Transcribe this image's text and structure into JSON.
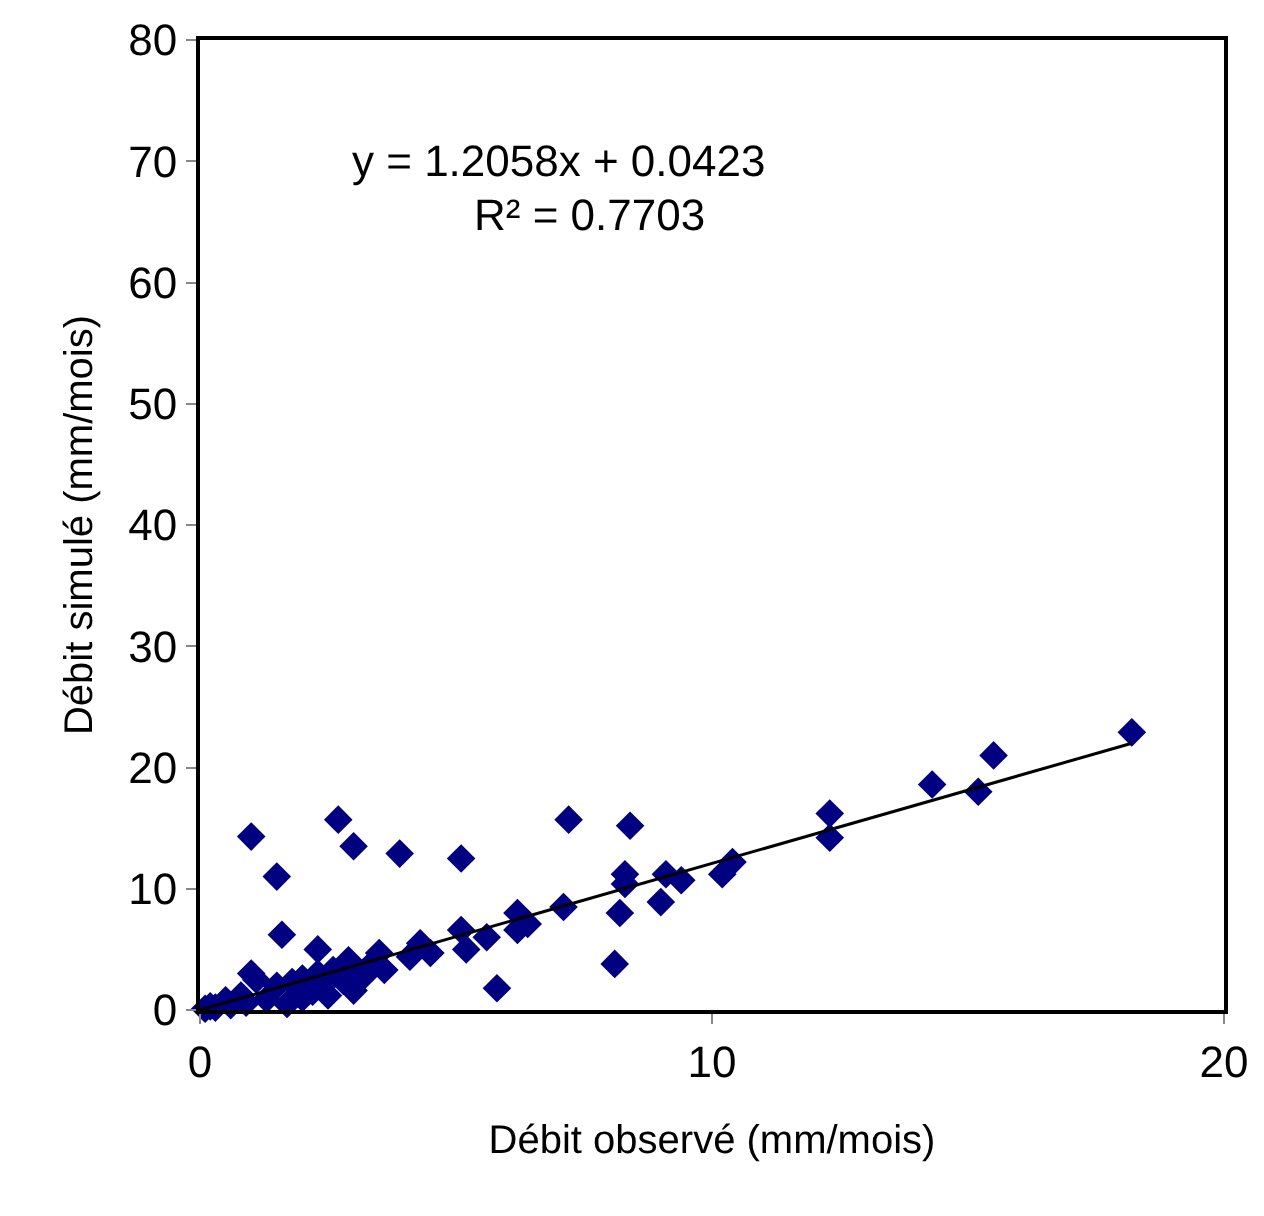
{
  "chart_data": {
    "type": "scatter",
    "xlabel": "Débit observé (mm/mois)",
    "ylabel": "Débit simulé (mm/mois)",
    "xlim": [
      0,
      20
    ],
    "xticks": [
      0,
      10,
      20
    ],
    "ylim": [
      0,
      80
    ],
    "yticks": [
      0,
      10,
      20,
      30,
      40,
      50,
      60,
      70,
      80
    ],
    "grid": false,
    "marker": "diamond",
    "annotations": [
      "y = 1.2058x + 0.0423",
      "R² = 0.7703"
    ],
    "series": [
      {
        "type": "scatter",
        "color": "#000080",
        "x": [
          18.2,
          15.5,
          15.2,
          14.3,
          12.3,
          12.3,
          10.4,
          10.2,
          9.4,
          9.1,
          9.0,
          8.4,
          8.3,
          8.3,
          8.2,
          8.1,
          7.2,
          7.1,
          6.4,
          6.2,
          6.2,
          5.8,
          5.6,
          5.2,
          5.1,
          5.1,
          4.5,
          4.3,
          4.1,
          3.9,
          3.5,
          3.0,
          2.9,
          2.7,
          2.3,
          1.6,
          1.5,
          1.0,
          1.0,
          0.1,
          0.2,
          0.3,
          0.5,
          0.6,
          0.8,
          0.9,
          1.1,
          1.3,
          1.5,
          1.7,
          1.8,
          2.0,
          2.2,
          2.3,
          2.4,
          2.6,
          2.8,
          3.0,
          3.2,
          3.4,
          3.6,
          2.0,
          2.5,
          3.0
        ],
        "values": [
          22.9,
          21.0,
          18.0,
          18.6,
          16.2,
          14.2,
          12.2,
          11.2,
          10.7,
          11.2,
          8.9,
          15.2,
          10.4,
          11.2,
          8.0,
          3.8,
          15.7,
          8.5,
          7.1,
          6.6,
          8.0,
          1.8,
          6.0,
          5.0,
          6.6,
          12.5,
          4.7,
          5.5,
          4.4,
          12.9,
          4.7,
          13.5,
          4.1,
          15.7,
          5.0,
          6.2,
          11.0,
          14.3,
          3.0,
          0.1,
          0.3,
          0.2,
          0.8,
          0.4,
          1.2,
          0.6,
          2.5,
          0.9,
          2.0,
          0.5,
          2.3,
          2.6,
          1.5,
          3.0,
          2.0,
          3.3,
          2.4,
          3.6,
          2.8,
          4.0,
          3.3,
          1.0,
          1.2,
          1.6
        ]
      },
      {
        "type": "line",
        "color": "#000000",
        "marker": "none",
        "x": [
          0,
          18.2
        ],
        "values": [
          0.0,
          22.0
        ]
      }
    ]
  }
}
